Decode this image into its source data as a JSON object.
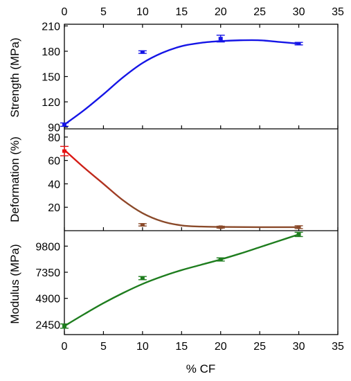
{
  "chart_data": {
    "type": "line",
    "x_ticks": [
      0,
      5,
      10,
      15,
      20,
      25,
      30,
      35
    ],
    "xlim": [
      0,
      35
    ],
    "xlabel": "% CF",
    "panels": [
      {
        "name": "strength",
        "ylabel": "Strength (MPa)",
        "ylim": [
          88,
          212
        ],
        "y_ticks": [
          90,
          120,
          150,
          180,
          210
        ],
        "color": "#1515e6",
        "points": [
          {
            "x": 0,
            "y": 93,
            "err": 2
          },
          {
            "x": 10,
            "y": 179,
            "err": 1.5
          },
          {
            "x": 20,
            "y": 195,
            "err": 4
          },
          {
            "x": 30,
            "y": 189,
            "err": 1.5
          }
        ],
        "curve": [
          [
            0,
            93
          ],
          [
            2.5,
            110
          ],
          [
            5,
            129
          ],
          [
            7.5,
            149
          ],
          [
            10,
            166
          ],
          [
            12.5,
            178
          ],
          [
            15,
            186
          ],
          [
            17.5,
            190
          ],
          [
            20,
            192
          ],
          [
            22.5,
            193
          ],
          [
            25,
            193
          ],
          [
            27.5,
            191
          ],
          [
            30,
            189
          ]
        ]
      },
      {
        "name": "deformation",
        "ylabel": "Deformation (%)",
        "ylim": [
          0,
          87
        ],
        "y_ticks": [
          20,
          40,
          60,
          80
        ],
        "color": "#e81010",
        "fit_color": "#8a4a2a",
        "points": [
          {
            "x": 0,
            "y": 68,
            "err": 4
          },
          {
            "x": 10,
            "y": 5,
            "err": 1
          },
          {
            "x": 20,
            "y": 3,
            "err": 0.8
          },
          {
            "x": 30,
            "y": 3,
            "err": 1.2
          }
        ],
        "curve": [
          [
            0,
            69
          ],
          [
            2.5,
            54
          ],
          [
            5,
            40
          ],
          [
            7.5,
            26
          ],
          [
            10,
            15
          ],
          [
            12.5,
            8
          ],
          [
            15,
            4.5
          ],
          [
            17.5,
            3.5
          ],
          [
            20,
            3.2
          ],
          [
            25,
            3.0
          ],
          [
            30,
            3.0
          ]
        ]
      },
      {
        "name": "modulus",
        "ylabel": "Modulus (MPa)",
        "ylim": [
          1500,
          11250
        ],
        "y_ticks": [
          2450,
          4900,
          7350,
          9800
        ],
        "color": "#1e7d1e",
        "points": [
          {
            "x": 0,
            "y": 2300,
            "err": 200
          },
          {
            "x": 10,
            "y": 6800,
            "err": 150
          },
          {
            "x": 20,
            "y": 8550,
            "err": 150
          },
          {
            "x": 30,
            "y": 10900,
            "err": 200
          }
        ],
        "curve": [
          [
            0,
            2300
          ],
          [
            2.5,
            3400
          ],
          [
            5,
            4450
          ],
          [
            7.5,
            5400
          ],
          [
            10,
            6250
          ],
          [
            12.5,
            6950
          ],
          [
            15,
            7550
          ],
          [
            17.5,
            8050
          ],
          [
            20,
            8550
          ],
          [
            22.5,
            9100
          ],
          [
            25,
            9700
          ],
          [
            27.5,
            10300
          ],
          [
            30,
            10900
          ]
        ]
      }
    ]
  }
}
